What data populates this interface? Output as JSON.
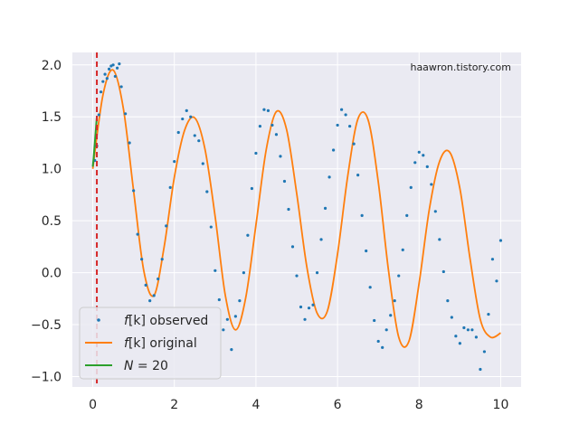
{
  "chart_data": {
    "type": "line",
    "title": "",
    "xlabel": "",
    "ylabel": "",
    "xlim": [
      -0.5,
      10.5
    ],
    "ylim": [
      -1.1,
      2.12
    ],
    "x_ticks": [
      0,
      2,
      4,
      6,
      8,
      10
    ],
    "y_ticks": [
      -1.0,
      -0.5,
      0.0,
      0.5,
      1.0,
      1.5,
      2.0
    ],
    "x_tick_labels": [
      "0",
      "2",
      "4",
      "6",
      "8",
      "10"
    ],
    "y_tick_labels": [
      "−1.0",
      "−0.5",
      "0.0",
      "0.5",
      "1.0",
      "1.5",
      "2.0"
    ],
    "grid": true,
    "annotation": "haawron.tistory.com",
    "vertical_line": {
      "x": 0.1,
      "color": "#d62728",
      "style": "dashed"
    },
    "legend": {
      "placement": "lower-left",
      "entries": [
        {
          "prefix": "f",
          "mid": "[k]",
          "suffix": " observed",
          "color": "#1f77b4",
          "marker": "point"
        },
        {
          "prefix": "f",
          "mid": "[k]",
          "suffix": " original",
          "color": "#ff7f0e",
          "marker": "line"
        },
        {
          "prefix": "N",
          "mid": "",
          "suffix": " = 20",
          "color": "#2ca02c",
          "marker": "line"
        }
      ]
    },
    "series": [
      {
        "name": "f[k] original",
        "color": "#ff7f0e",
        "x": [
          0.0,
          0.25,
          0.5,
          0.75,
          1.0,
          1.25,
          1.5,
          1.75,
          2.0,
          2.25,
          2.5,
          2.75,
          3.0,
          3.25,
          3.5,
          3.75,
          4.0,
          4.25,
          4.5,
          4.75,
          5.0,
          5.25,
          5.5,
          5.75,
          6.0,
          6.25,
          6.5,
          6.75,
          7.0,
          7.25,
          7.5,
          7.75,
          8.0,
          8.25,
          8.5,
          8.75,
          9.0,
          9.25,
          9.5,
          9.75,
          10.0
        ],
        "y": [
          1.0,
          1.71,
          1.95,
          1.58,
          0.79,
          0.02,
          -0.22,
          0.25,
          0.92,
          1.37,
          1.49,
          1.19,
          0.54,
          -0.22,
          -0.55,
          -0.24,
          0.46,
          1.18,
          1.55,
          1.38,
          0.76,
          0.05,
          -0.39,
          -0.37,
          0.18,
          0.93,
          1.48,
          1.47,
          0.87,
          0.02,
          -0.62,
          -0.66,
          -0.1,
          0.61,
          1.07,
          1.16,
          0.81,
          0.13,
          -0.45,
          -0.62,
          -0.58
        ]
      },
      {
        "name": "f[k] observed",
        "color": "#1f77b4",
        "x": [
          0.05,
          0.1,
          0.15,
          0.2,
          0.25,
          0.3,
          0.35,
          0.4,
          0.45,
          0.5,
          0.55,
          0.6,
          0.65,
          0.7,
          0.8,
          0.9,
          1.0,
          1.1,
          1.2,
          1.3,
          1.4,
          1.5,
          1.6,
          1.7,
          1.8,
          1.9,
          2.0,
          2.1,
          2.2,
          2.3,
          2.4,
          2.5,
          2.6,
          2.7,
          2.8,
          2.9,
          3.0,
          3.1,
          3.2,
          3.3,
          3.4,
          3.5,
          3.6,
          3.7,
          3.8,
          3.9,
          4.0,
          4.1,
          4.2,
          4.3,
          4.4,
          4.5,
          4.6,
          4.7,
          4.8,
          4.9,
          5.0,
          5.1,
          5.2,
          5.3,
          5.4,
          5.5,
          5.6,
          5.7,
          5.8,
          5.9,
          6.0,
          6.1,
          6.2,
          6.3,
          6.4,
          6.5,
          6.6,
          6.7,
          6.8,
          6.9,
          7.0,
          7.1,
          7.2,
          7.3,
          7.4,
          7.5,
          7.6,
          7.7,
          7.8,
          7.9,
          8.0,
          8.1,
          8.2,
          8.3,
          8.4,
          8.5,
          8.6,
          8.7,
          8.8,
          8.9,
          9.0,
          9.1,
          9.2,
          9.3,
          9.4,
          9.5,
          9.6,
          9.7,
          9.8,
          9.9,
          10.0
        ],
        "y": [
          1.08,
          1.22,
          1.52,
          1.74,
          1.84,
          1.91,
          1.87,
          1.96,
          1.99,
          2.0,
          1.89,
          1.97,
          2.01,
          1.79,
          1.53,
          1.25,
          0.79,
          0.37,
          0.13,
          -0.12,
          -0.27,
          -0.22,
          -0.06,
          0.13,
          0.45,
          0.82,
          1.07,
          1.35,
          1.48,
          1.56,
          1.5,
          1.32,
          1.27,
          1.05,
          0.78,
          0.44,
          0.02,
          -0.26,
          -0.55,
          -0.45,
          -0.74,
          -0.42,
          -0.27,
          0.0,
          0.36,
          0.81,
          1.15,
          1.41,
          1.57,
          1.56,
          1.42,
          1.33,
          1.12,
          0.88,
          0.61,
          0.25,
          -0.03,
          -0.33,
          -0.45,
          -0.34,
          -0.31,
          0.0,
          0.32,
          0.62,
          0.92,
          1.18,
          1.42,
          1.57,
          1.52,
          1.41,
          1.24,
          0.94,
          0.55,
          0.21,
          -0.14,
          -0.46,
          -0.66,
          -0.72,
          -0.55,
          -0.41,
          -0.27,
          -0.03,
          0.22,
          0.55,
          0.82,
          1.06,
          1.16,
          1.13,
          1.02,
          0.85,
          0.59,
          0.32,
          0.01,
          -0.27,
          -0.43,
          -0.61,
          -0.68,
          -0.53,
          -0.55,
          -0.55,
          -0.62,
          -0.93,
          -0.76,
          -0.4,
          0.13,
          -0.08,
          0.31
        ]
      },
      {
        "name": "N = 20",
        "color": "#2ca02c",
        "x": [
          0.0,
          0.02,
          0.04,
          0.06,
          0.08,
          0.1
        ],
        "y": [
          1.02,
          1.1,
          1.2,
          1.3,
          1.4,
          1.5
        ]
      }
    ]
  }
}
